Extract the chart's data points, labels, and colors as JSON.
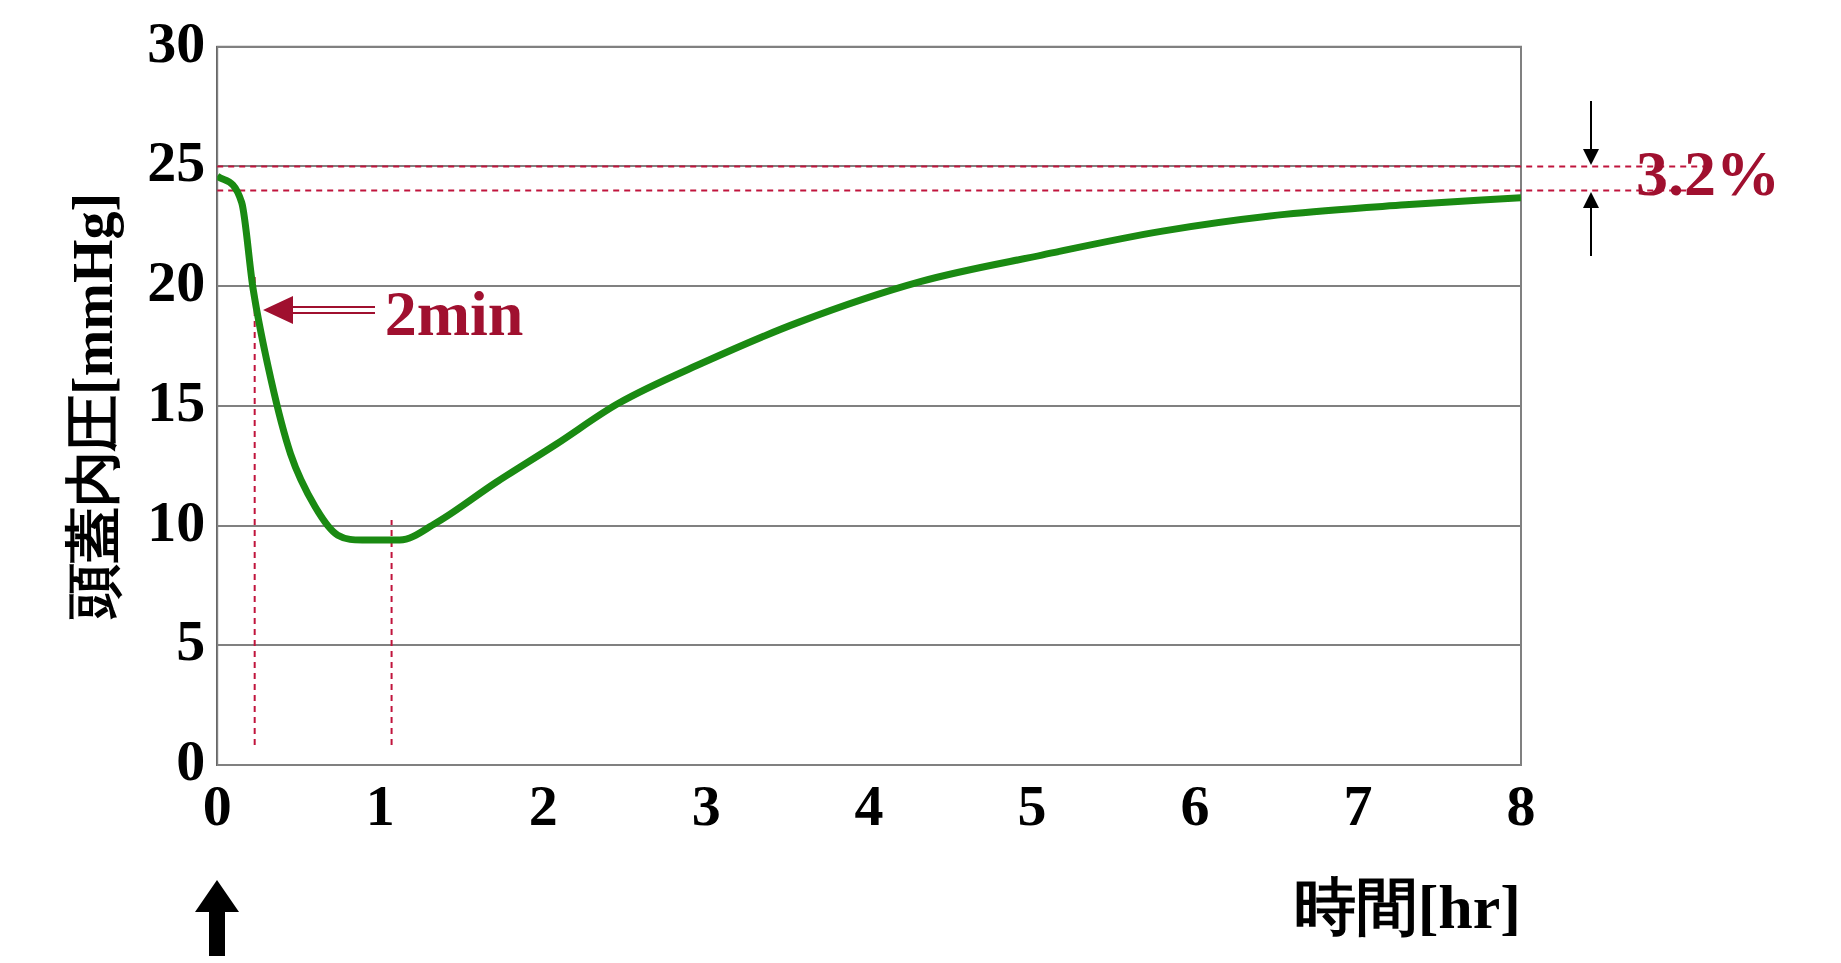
{
  "chart_data": {
    "type": "line",
    "xlabel": "時間[hr]",
    "ylabel": "頭蓋内圧[mmHg]",
    "x": [
      0,
      0.15,
      0.22,
      0.33,
      0.45,
      0.6,
      0.74,
      0.89,
      1.12,
      1.34,
      1.71,
      2.08,
      2.46,
      2.98,
      3.57,
      4.32,
      5.06,
      5.8,
      6.55,
      7.29,
      8
    ],
    "series": [
      {
        "color": "#1a8a12",
        "values": [
          24.6,
          23.5,
          19.9,
          16.1,
          13.0,
          10.8,
          9.6,
          9.4,
          9.4,
          10.1,
          11.8,
          13.4,
          15.1,
          16.8,
          18.5,
          20.2,
          21.3,
          22.3,
          23.0,
          23.4,
          23.7
        ]
      }
    ],
    "xlim": [
      0,
      8
    ],
    "xticks": [
      0,
      1,
      2,
      3,
      4,
      5,
      6,
      7,
      8
    ],
    "ylim": [
      0,
      30
    ],
    "yticks": [
      0,
      5,
      10,
      15,
      20,
      25,
      30
    ],
    "grid": "y",
    "legend": false,
    "marker": "none",
    "line_style": "solid",
    "ref_lines": [
      {
        "axis": "y",
        "value": 24,
        "color": "#c0143c",
        "line_style": "dashed"
      },
      {
        "axis": "y",
        "value": 25,
        "color": "#c0143c",
        "line_style": "dashed"
      },
      {
        "axis": "x",
        "value": 0.23,
        "color": "#c0143c",
        "line_style": "dashed"
      },
      {
        "axis": "x",
        "value": 1.07,
        "color": "#c0143c",
        "line_style": "dashed"
      }
    ],
    "annotations": [
      {
        "text": "2min",
        "x": 0.23,
        "y": 19
      },
      "3.2%"
    ]
  }
}
